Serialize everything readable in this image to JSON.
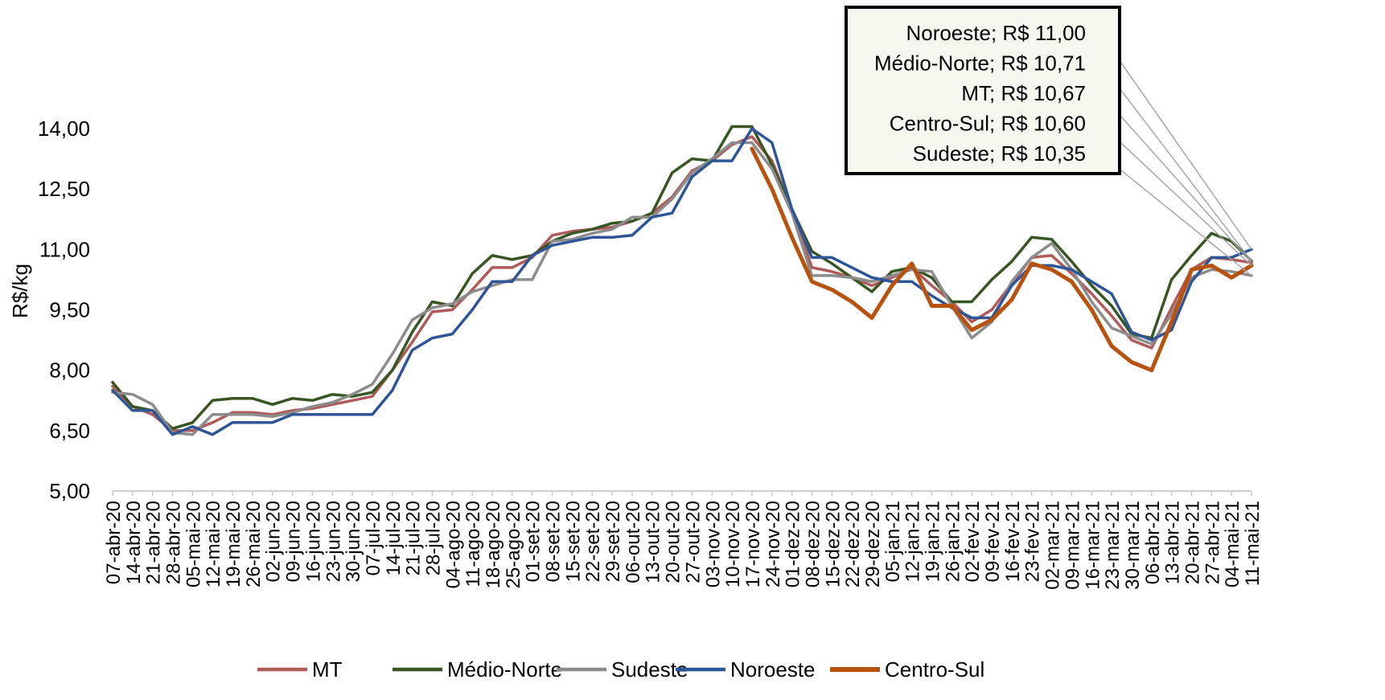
{
  "chart_data": {
    "type": "line",
    "title": "",
    "xlabel": "",
    "ylabel": "R$/kg",
    "ylim": [
      5,
      15
    ],
    "yticks": [
      "5,00",
      "6,50",
      "8,00",
      "9,50",
      "11,00",
      "12,50",
      "14,00"
    ],
    "ytick_values": [
      5,
      6.5,
      8,
      9.5,
      11,
      12.5,
      14
    ],
    "grid": false,
    "legend_position": "bottom",
    "categories": [
      "07-abr-20",
      "14-abr-20",
      "21-abr-20",
      "28-abr-20",
      "05-mai-20",
      "12-mai-20",
      "19-mai-20",
      "26-mai-20",
      "02-jun-20",
      "09-jun-20",
      "16-jun-20",
      "23-jun-20",
      "30-jun-20",
      "07-jul-20",
      "14-jul-20",
      "21-jul-20",
      "28-jul-20",
      "04-ago-20",
      "11-ago-20",
      "18-ago-20",
      "25-ago-20",
      "01-set-20",
      "08-set-20",
      "15-set-20",
      "22-set-20",
      "29-set-20",
      "06-out-20",
      "13-out-20",
      "20-out-20",
      "27-out-20",
      "03-nov-20",
      "10-nov-20",
      "17-nov-20",
      "24-nov-20",
      "01-dez-20",
      "08-dez-20",
      "15-dez-20",
      "22-dez-20",
      "29-dez-20",
      "05-jan-21",
      "12-jan-21",
      "19-jan-21",
      "26-jan-21",
      "02-fev-21",
      "09-fev-21",
      "16-fev-21",
      "23-fev-21",
      "02-mar-21",
      "09-mar-21",
      "16-mar-21",
      "23-mar-21",
      "30-mar-21",
      "06-abr-21",
      "13-abr-21",
      "20-abr-21",
      "27-abr-21",
      "04-mai-21",
      "11-mai-21"
    ],
    "label_every_nth": 1,
    "points_per_category": 2,
    "series": [
      {
        "name": "MT",
        "color": "#b05a5a",
        "width": 3.5,
        "values": [
          7.6,
          7.1,
          6.9,
          6.5,
          6.5,
          6.7,
          6.95,
          6.95,
          6.9,
          7.0,
          7.05,
          7.15,
          7.25,
          7.35,
          8.0,
          8.7,
          9.45,
          9.5,
          10.0,
          10.55,
          10.55,
          10.8,
          11.35,
          11.45,
          11.5,
          11.55,
          11.7,
          11.9,
          12.3,
          12.95,
          13.2,
          13.6,
          13.8,
          13.2,
          12.0,
          10.55,
          10.45,
          10.3,
          10.1,
          10.3,
          10.55,
          10.1,
          9.7,
          9.2,
          9.5,
          10.15,
          10.8,
          10.85,
          10.4,
          9.9,
          9.35,
          8.75,
          8.55,
          9.55,
          10.5,
          10.8,
          10.75,
          10.67
        ]
      },
      {
        "name": "Médio-Norte",
        "color": "#375623",
        "width": 3.5,
        "values": [
          7.7,
          7.1,
          7.0,
          6.55,
          6.7,
          7.25,
          7.3,
          7.3,
          7.15,
          7.3,
          7.25,
          7.4,
          7.35,
          7.45,
          8.0,
          8.95,
          9.7,
          9.6,
          10.4,
          10.85,
          10.75,
          10.85,
          11.2,
          11.4,
          11.5,
          11.65,
          11.7,
          11.9,
          12.9,
          13.25,
          13.2,
          14.05,
          14.05,
          13.1,
          12.0,
          10.95,
          10.65,
          10.3,
          9.95,
          10.45,
          10.55,
          10.3,
          9.7,
          9.7,
          10.25,
          10.7,
          11.3,
          11.25,
          10.7,
          10.1,
          9.6,
          8.9,
          8.8,
          10.25,
          10.85,
          11.4,
          11.2,
          10.71
        ]
      },
      {
        "name": "Sudeste",
        "color": "#8c8c8c",
        "width": 3.5,
        "values": [
          7.45,
          7.4,
          7.15,
          6.45,
          6.4,
          6.9,
          6.9,
          6.9,
          6.85,
          6.95,
          7.1,
          7.2,
          7.4,
          7.65,
          8.4,
          9.25,
          9.55,
          9.65,
          9.95,
          10.1,
          10.25,
          10.25,
          11.2,
          11.25,
          11.4,
          11.5,
          11.8,
          11.8,
          12.25,
          12.9,
          13.25,
          13.65,
          13.65,
          13.0,
          11.9,
          10.35,
          10.35,
          10.3,
          10.2,
          10.35,
          10.5,
          10.45,
          9.6,
          8.8,
          9.2,
          10.2,
          10.8,
          11.15,
          10.5,
          9.7,
          9.05,
          8.85,
          8.65,
          9.4,
          10.3,
          10.5,
          10.45,
          10.35
        ]
      },
      {
        "name": "Noroeste",
        "color": "#2e5597",
        "width": 3.5,
        "values": [
          7.5,
          7.0,
          7.0,
          6.4,
          6.6,
          6.4,
          6.7,
          6.7,
          6.7,
          6.9,
          6.9,
          6.9,
          6.9,
          6.9,
          7.5,
          8.5,
          8.8,
          8.9,
          9.5,
          10.2,
          10.2,
          10.85,
          11.1,
          11.2,
          11.3,
          11.3,
          11.35,
          11.8,
          11.9,
          12.8,
          13.2,
          13.2,
          14.0,
          13.65,
          12.0,
          10.8,
          10.8,
          10.55,
          10.3,
          10.2,
          10.2,
          9.85,
          9.55,
          9.3,
          9.3,
          10.1,
          10.6,
          10.6,
          10.5,
          10.2,
          9.9,
          8.95,
          8.75,
          9.0,
          10.2,
          10.8,
          10.8,
          11.0
        ]
      },
      {
        "name": "Centro-Sul",
        "color": "#b8520f",
        "width": 5,
        "values": [
          null,
          null,
          null,
          null,
          null,
          null,
          null,
          null,
          null,
          null,
          null,
          null,
          null,
          null,
          null,
          null,
          null,
          null,
          null,
          null,
          null,
          null,
          null,
          null,
          null,
          null,
          null,
          null,
          null,
          null,
          null,
          null,
          13.5,
          12.5,
          11.3,
          10.2,
          10.0,
          9.7,
          9.3,
          10.1,
          10.65,
          9.6,
          9.6,
          9.0,
          9.25,
          9.75,
          10.65,
          10.5,
          10.2,
          9.5,
          8.6,
          8.2,
          8.0,
          9.2,
          10.5,
          10.6,
          10.3,
          10.6
        ]
      }
    ],
    "annotations": [
      {
        "text": "Noroeste; R$ 11,00",
        "series": "Noroeste"
      },
      {
        "text": "Médio-Norte; R$ 10,71",
        "series": "Médio-Norte"
      },
      {
        "text": "MT; R$ 10,67",
        "series": "MT"
      },
      {
        "text": "Centro-Sul; R$ 10,60",
        "series": "Centro-Sul"
      },
      {
        "text": "Sudeste; R$ 10,35",
        "series": "Sudeste"
      }
    ],
    "annotation_box_fill": "#f5f7ef",
    "leader_color": "#a6a6a6"
  }
}
